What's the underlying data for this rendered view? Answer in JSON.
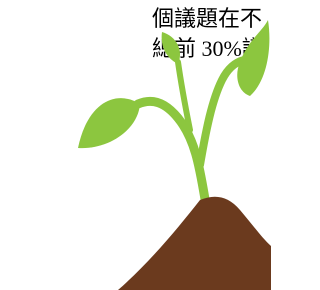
{
  "text_lines": [
    "個議題在不",
    "總前 30%議"
  ]
}
